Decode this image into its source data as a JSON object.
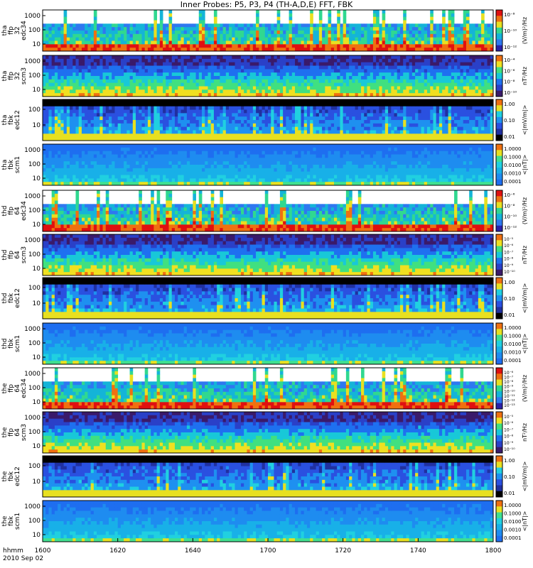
{
  "title": "Inner Probes: P5, P3, P4 (TH-A,D,E) FFT, FBK",
  "time_axis": {
    "label_line1": "hhmm",
    "label_line2": "2010 Sep 02",
    "ticks": [
      "1600",
      "1620",
      "1640",
      "1700",
      "1720",
      "1740",
      "1800"
    ]
  },
  "chart_data": [
    {
      "type": "heatmap",
      "ylabel": [
        "tha",
        "ffp",
        "32",
        "edc34"
      ],
      "yticks": [
        "1000",
        "100",
        "10"
      ],
      "colorbar_label": "(V/m)²/Hz",
      "colorbar_ticks": [
        "10⁻⁸",
        "10⁻¹⁰",
        "10⁻¹²"
      ],
      "colors": [
        "#2a20a8",
        "#2e78f0",
        "#14b4d8",
        "#30d890",
        "#e8e020",
        "#f07010",
        "#e01010"
      ]
    },
    {
      "type": "heatmap",
      "ylabel": [
        "tha",
        "ffp",
        "32",
        "scm3"
      ],
      "yticks": [
        "1000",
        "100",
        "10"
      ],
      "colorbar_label": "nT²/Hz",
      "colorbar_ticks": [
        "10⁻⁴",
        "10⁻⁶",
        "10⁻⁸",
        "10⁻¹⁰"
      ],
      "colors": [
        "#3a1a6a",
        "#2a40c8",
        "#1e70f0",
        "#18c8d8",
        "#40e080",
        "#f0e020",
        "#f07010"
      ]
    },
    {
      "type": "heatmap",
      "ylabel": [
        "tha",
        "fbk",
        "edc12"
      ],
      "yticks": [
        "100",
        "10"
      ],
      "colorbar_label": "<|mV/m|>",
      "colorbar_ticks": [
        "1.00",
        "0.10",
        "0.01"
      ],
      "colors": [
        "#000000",
        "#2030a0",
        "#2a50e0",
        "#1e90f0",
        "#20d0e0",
        "#e8e020",
        "#f07010"
      ]
    },
    {
      "type": "heatmap",
      "ylabel": [
        "tha",
        "fbk",
        "scm1"
      ],
      "yticks": [
        "1000",
        "100",
        "10"
      ],
      "colorbar_label": "<|nT|>",
      "colorbar_ticks": [
        "1.0000",
        "0.1000",
        "0.0100",
        "0.0010",
        "0.0001"
      ],
      "colors": [
        "#1e6ef0",
        "#1e8cf0",
        "#18b0e8",
        "#20d0e0",
        "#40e090",
        "#e8e020",
        "#f07010"
      ]
    },
    {
      "type": "heatmap",
      "ylabel": [
        "thd",
        "ffp",
        "64",
        "edc34"
      ],
      "yticks": [
        "1000",
        "100",
        "10"
      ],
      "colorbar_label": "(V/m)²/Hz",
      "colorbar_ticks": [
        "10⁻⁶",
        "10⁻⁸",
        "10⁻¹⁰",
        "10⁻¹²"
      ],
      "colors": [
        "#2a20a8",
        "#2e78f0",
        "#14b4d8",
        "#30d890",
        "#e8e020",
        "#f07010",
        "#e01010"
      ]
    },
    {
      "type": "heatmap",
      "ylabel": [
        "thd",
        "ffp",
        "64",
        "scm3"
      ],
      "yticks": [
        "1000",
        "100",
        "10"
      ],
      "colorbar_label": "nT²/Hz",
      "colorbar_ticks": [
        "10⁻⁵",
        "10⁻⁶",
        "10⁻⁷",
        "10⁻⁸",
        "10⁻⁹",
        "10⁻¹⁰"
      ],
      "colors": [
        "#3a1a6a",
        "#2a40c8",
        "#1e70f0",
        "#18c8d8",
        "#40e080",
        "#f0e020",
        "#f07010"
      ]
    },
    {
      "type": "heatmap",
      "ylabel": [
        "thd",
        "fbk",
        "edc12"
      ],
      "yticks": [
        "100",
        "10"
      ],
      "colorbar_label": "<|mV/m|>",
      "colorbar_ticks": [
        "1.00",
        "0.10",
        "0.01"
      ],
      "colors": [
        "#000000",
        "#2030a0",
        "#2a50e0",
        "#1e90f0",
        "#20d0e0",
        "#e8e020",
        "#f07010"
      ]
    },
    {
      "type": "heatmap",
      "ylabel": [
        "thd",
        "fbk",
        "scm1"
      ],
      "yticks": [
        "1000",
        "100",
        "10"
      ],
      "colorbar_label": "<|nT|>",
      "colorbar_ticks": [
        "1.0000",
        "0.1000",
        "0.0100",
        "0.0010",
        "0.0001"
      ],
      "colors": [
        "#1e6ef0",
        "#1e8cf0",
        "#18b0e8",
        "#20d0e0",
        "#40e090",
        "#e8e020",
        "#f07010"
      ]
    },
    {
      "type": "heatmap",
      "ylabel": [
        "the",
        "ffp",
        "64",
        "edc34"
      ],
      "yticks": [
        "1000",
        "100",
        "10"
      ],
      "colorbar_label": "(V/m)²/Hz",
      "colorbar_ticks": [
        "10⁻⁶",
        "10⁻⁷",
        "10⁻⁸",
        "10⁻⁹",
        "10⁻¹⁰",
        "10⁻¹¹",
        "10⁻¹²",
        "10⁻¹³"
      ],
      "colors": [
        "#2a20a8",
        "#2e78f0",
        "#14b4d8",
        "#30d890",
        "#e8e020",
        "#f07010",
        "#e01010"
      ]
    },
    {
      "type": "heatmap",
      "ylabel": [
        "the",
        "ffp",
        "64",
        "scm3"
      ],
      "yticks": [
        "1000",
        "100",
        "10"
      ],
      "colorbar_label": "nT²/Hz",
      "colorbar_ticks": [
        "10⁻⁵",
        "10⁻⁶",
        "10⁻⁷",
        "10⁻⁸",
        "10⁻⁹",
        "10⁻¹⁰"
      ],
      "colors": [
        "#3a1a6a",
        "#2a40c8",
        "#1e70f0",
        "#18c8d8",
        "#40e080",
        "#f0e020",
        "#f07010"
      ]
    },
    {
      "type": "heatmap",
      "ylabel": [
        "the",
        "fbk",
        "edc12"
      ],
      "yticks": [
        "100",
        "10"
      ],
      "colorbar_label": "<|mV/m|>",
      "colorbar_ticks": [
        "1.00",
        "0.10",
        "0.01"
      ],
      "colors": [
        "#000000",
        "#2030a0",
        "#2a50e0",
        "#1e90f0",
        "#20d0e0",
        "#e8e020",
        "#f07010"
      ]
    },
    {
      "type": "heatmap",
      "ylabel": [
        "the",
        "fbk",
        "scm1"
      ],
      "yticks": [
        "1000",
        "100",
        "10"
      ],
      "colorbar_label": "<|nT|>",
      "colorbar_ticks": [
        "1.0000",
        "0.1000",
        "0.0100",
        "0.0010",
        "0.0001"
      ],
      "colors": [
        "#1e6ef0",
        "#1e8cf0",
        "#18b0e8",
        "#20d0e0",
        "#40e090",
        "#e8e020",
        "#f07010"
      ]
    }
  ]
}
